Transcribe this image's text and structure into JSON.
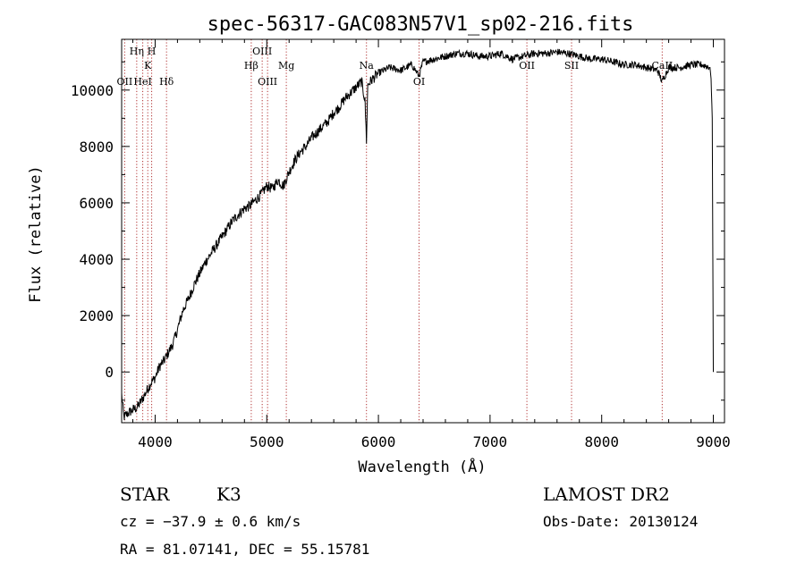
{
  "chart_data": {
    "type": "line",
    "title": "spec-56317-GAC083N57V1_sp02-216.fits",
    "xlabel": "Wavelength (Å)",
    "ylabel": "Flux (relative)",
    "xlim": [
      3700,
      9100
    ],
    "ylim": [
      -1800,
      11800
    ],
    "x_ticks": [
      {
        "value": 4000,
        "label": "4000"
      },
      {
        "value": 5000,
        "label": "5000"
      },
      {
        "value": 6000,
        "label": "6000"
      },
      {
        "value": 7000,
        "label": "7000"
      },
      {
        "value": 8000,
        "label": "8000"
      },
      {
        "value": 9000,
        "label": "9000"
      }
    ],
    "y_ticks": [
      {
        "value": 0,
        "label": "0"
      },
      {
        "value": 2000,
        "label": "2000"
      },
      {
        "value": 4000,
        "label": "4000"
      },
      {
        "value": 6000,
        "label": "6000"
      },
      {
        "value": 8000,
        "label": "8000"
      },
      {
        "value": 10000,
        "label": "10000"
      }
    ],
    "lines": [
      {
        "label": "OII",
        "wavelength": 3727,
        "row": 3
      },
      {
        "label": "Hη",
        "wavelength": 3835,
        "row": 0
      },
      {
        "label": "HeI",
        "wavelength": 3889,
        "row": 3
      },
      {
        "label": "K",
        "wavelength": 3934,
        "row": 1
      },
      {
        "label": "H",
        "wavelength": 3969,
        "row": 0
      },
      {
        "label": "Hδ",
        "wavelength": 4102,
        "row": 3
      },
      {
        "label": "Hβ",
        "wavelength": 4861,
        "row": 2
      },
      {
        "label": "OIII",
        "wavelength": 4959,
        "row": 0
      },
      {
        "label": "OIII",
        "wavelength": 5007,
        "row": 3
      },
      {
        "label": "Mg",
        "wavelength": 5175,
        "row": 2
      },
      {
        "label": "Na",
        "wavelength": 5893,
        "row": 1
      },
      {
        "label": "OI",
        "wavelength": 6364,
        "row": 3
      },
      {
        "label": "OII",
        "wavelength": 7330,
        "row": 2
      },
      {
        "label": "SII",
        "wavelength": 7730,
        "row": 2
      },
      {
        "label": "CaII",
        "wavelength": 8542,
        "row": 1
      }
    ],
    "series": [
      {
        "color": "#000000",
        "x": [
          3700,
          3720,
          3760,
          3800,
          3840,
          3880,
          3920,
          3960,
          4000,
          4040,
          4080,
          4120,
          4160,
          4200,
          4250,
          4300,
          4350,
          4400,
          4450,
          4500,
          4550,
          4600,
          4650,
          4700,
          4750,
          4800,
          4850,
          4900,
          4950,
          5000,
          5050,
          5100,
          5150,
          5200,
          5250,
          5300,
          5350,
          5400,
          5450,
          5500,
          5550,
          5600,
          5650,
          5700,
          5750,
          5800,
          5850,
          5880,
          5893,
          5905,
          5950,
          6000,
          6100,
          6200,
          6300,
          6364,
          6400,
          6500,
          6600,
          6700,
          6800,
          6900,
          7000,
          7100,
          7200,
          7300,
          7400,
          7500,
          7600,
          7700,
          7800,
          7900,
          8000,
          8100,
          8200,
          8300,
          8400,
          8500,
          8542,
          8600,
          8700,
          8800,
          8900,
          8970,
          8980,
          8990,
          9000
        ],
        "y": [
          -800,
          -1600,
          -1450,
          -1350,
          -1250,
          -1000,
          -700,
          -400,
          -200,
          200,
          400,
          700,
          1000,
          1500,
          2200,
          2600,
          3100,
          3500,
          3900,
          4200,
          4500,
          4800,
          5100,
          5400,
          5600,
          5800,
          5900,
          6100,
          6300,
          6600,
          6500,
          6800,
          6600,
          7100,
          7500,
          7800,
          8000,
          8300,
          8500,
          8700,
          8900,
          9200,
          9400,
          9700,
          9900,
          10100,
          10300,
          9600,
          8200,
          10200,
          10400,
          10600,
          10800,
          10700,
          10900,
          10500,
          11000,
          11100,
          11200,
          11300,
          11300,
          11200,
          11200,
          11300,
          11100,
          11200,
          11300,
          11300,
          11350,
          11300,
          11200,
          11100,
          11100,
          11000,
          10900,
          10900,
          10800,
          10700,
          10300,
          10800,
          10800,
          10900,
          10900,
          10800,
          10400,
          9000,
          0
        ]
      }
    ]
  },
  "info": {
    "object_type": "STAR",
    "subclass": "K3",
    "survey": "LAMOST DR2",
    "cz": "cz = −37.9 ± 0.6 km/s",
    "obs_date": "Obs-Date: 20130124",
    "coords": "RA =  81.07141, DEC =  55.15781"
  }
}
